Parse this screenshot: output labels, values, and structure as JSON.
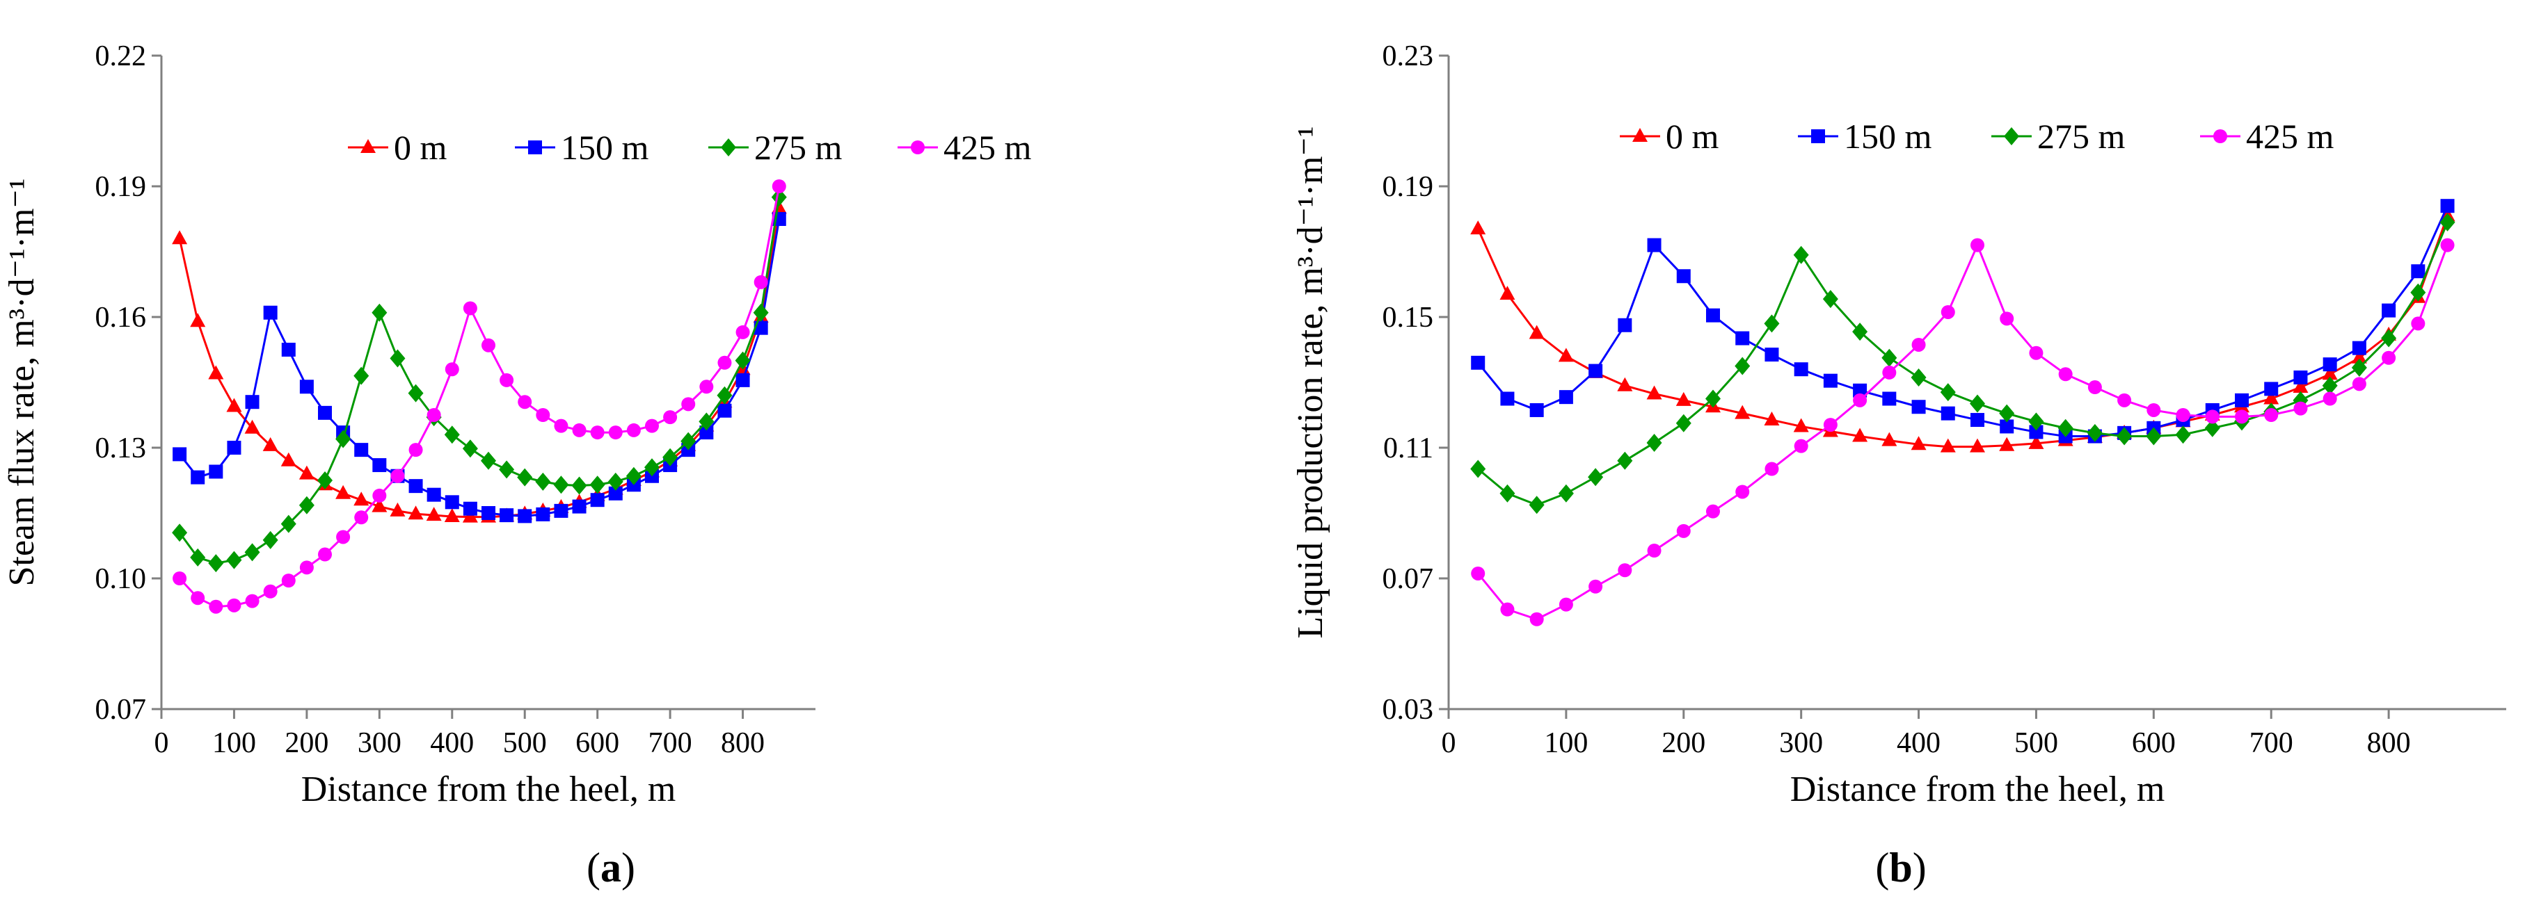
{
  "chart_data": [
    {
      "type": "line",
      "panel_label": "a",
      "title": "",
      "xlabel": "Distance from the heel, m",
      "ylabel": "Steam flux rate, m³·d⁻¹·m⁻¹",
      "xlim": [
        0,
        900
      ],
      "ylim": [
        0.07,
        0.22
      ],
      "xticks": [
        "0",
        "100",
        "200",
        "300",
        "400",
        "500",
        "600",
        "700",
        "800"
      ],
      "yticks": [
        "0.07",
        "0.10",
        "0.13",
        "0.16",
        "0.19",
        "0.22"
      ],
      "grid": false,
      "legend_position": "top",
      "x": [
        25,
        50,
        75,
        100,
        125,
        150,
        175,
        200,
        225,
        250,
        275,
        300,
        325,
        350,
        375,
        400,
        425,
        450,
        475,
        500,
        525,
        550,
        575,
        600,
        625,
        650,
        675,
        700,
        725,
        750,
        775,
        800,
        825,
        850
      ],
      "series": [
        {
          "name": "0 m",
          "color": "#ff0000",
          "marker": "triangle",
          "values": [
            0.178,
            0.159,
            0.147,
            0.1395,
            0.1345,
            0.1305,
            0.127,
            0.124,
            0.1215,
            0.1195,
            0.118,
            0.1165,
            0.1155,
            0.1148,
            0.1145,
            0.1142,
            0.1141,
            0.1141,
            0.1143,
            0.1148,
            0.1155,
            0.1163,
            0.1175,
            0.119,
            0.1205,
            0.1225,
            0.1245,
            0.127,
            0.1305,
            0.135,
            0.1405,
            0.148,
            0.16,
            0.185
          ]
        },
        {
          "name": "150 m",
          "color": "#0000ff",
          "marker": "square",
          "values": [
            0.1285,
            0.1232,
            0.1245,
            0.13,
            0.1405,
            0.161,
            0.1525,
            0.144,
            0.138,
            0.1335,
            0.1295,
            0.126,
            0.1235,
            0.1212,
            0.1192,
            0.1175,
            0.116,
            0.115,
            0.1145,
            0.1143,
            0.1147,
            0.1155,
            0.1165,
            0.118,
            0.1195,
            0.1215,
            0.1235,
            0.126,
            0.1295,
            0.1335,
            0.1385,
            0.1455,
            0.1575,
            0.1825
          ]
        },
        {
          "name": "275 m",
          "color": "#009900",
          "marker": "diamond",
          "values": [
            0.1105,
            0.1048,
            0.1035,
            0.1042,
            0.106,
            0.1088,
            0.1125,
            0.1168,
            0.1225,
            0.132,
            0.1465,
            0.161,
            0.1505,
            0.1425,
            0.137,
            0.133,
            0.1298,
            0.127,
            0.125,
            0.1232,
            0.1222,
            0.1215,
            0.1213,
            0.1215,
            0.1222,
            0.1235,
            0.1255,
            0.1278,
            0.1315,
            0.136,
            0.142,
            0.15,
            0.161,
            0.1875
          ]
        },
        {
          "name": "425 m",
          "color": "#ff00ff",
          "marker": "circle",
          "values": [
            0.1,
            0.0955,
            0.0935,
            0.0938,
            0.0948,
            0.097,
            0.0995,
            0.1025,
            0.1055,
            0.1095,
            0.114,
            0.119,
            0.1235,
            0.1295,
            0.1375,
            0.148,
            0.162,
            0.1535,
            0.1455,
            0.1405,
            0.1375,
            0.135,
            0.134,
            0.1335,
            0.1335,
            0.134,
            0.135,
            0.137,
            0.14,
            0.144,
            0.1495,
            0.1565,
            0.168,
            0.19
          ]
        }
      ]
    },
    {
      "type": "line",
      "panel_label": "b",
      "title": "",
      "xlabel": "Distance from the heel, m",
      "ylabel": "Liquid production rate, m³·d⁻¹·m⁻¹",
      "xlim": [
        0,
        900
      ],
      "ylim": [
        0.03,
        0.23
      ],
      "xticks": [
        "0",
        "100",
        "200",
        "300",
        "400",
        "500",
        "600",
        "700",
        "800"
      ],
      "yticks": [
        "0.03",
        "0.07",
        "0.11",
        "0.15",
        "0.19",
        "0.23"
      ],
      "grid": false,
      "legend_position": "top",
      "x": [
        25,
        50,
        75,
        100,
        125,
        150,
        175,
        200,
        225,
        250,
        275,
        300,
        325,
        350,
        375,
        400,
        425,
        450,
        475,
        500,
        525,
        550,
        575,
        600,
        625,
        650,
        675,
        700,
        725,
        750,
        775,
        800,
        825,
        850
      ],
      "series": [
        {
          "name": "0 m",
          "color": "#ff0000",
          "marker": "triangle",
          "values": [
            0.177,
            0.157,
            0.145,
            0.138,
            0.133,
            0.129,
            0.1265,
            0.1245,
            0.1225,
            0.1205,
            0.1185,
            0.1165,
            0.115,
            0.1135,
            0.1122,
            0.111,
            0.1103,
            0.1103,
            0.1107,
            0.1113,
            0.1122,
            0.1132,
            0.1145,
            0.116,
            0.118,
            0.12,
            0.1225,
            0.125,
            0.1285,
            0.1325,
            0.1375,
            0.1445,
            0.156,
            0.181
          ]
        },
        {
          "name": "150 m",
          "color": "#0000ff",
          "marker": "square",
          "values": [
            0.136,
            0.125,
            0.1215,
            0.1255,
            0.1335,
            0.1475,
            0.172,
            0.1625,
            0.1505,
            0.1435,
            0.1385,
            0.134,
            0.1305,
            0.1275,
            0.125,
            0.1225,
            0.1205,
            0.1185,
            0.1165,
            0.1148,
            0.1135,
            0.1135,
            0.1145,
            0.116,
            0.1185,
            0.1215,
            0.1245,
            0.128,
            0.1315,
            0.1355,
            0.1405,
            0.152,
            0.164,
            0.184
          ]
        },
        {
          "name": "275 m",
          "color": "#009900",
          "marker": "diamond",
          "values": [
            0.1035,
            0.096,
            0.0925,
            0.096,
            0.101,
            0.106,
            0.1115,
            0.1175,
            0.125,
            0.135,
            0.148,
            0.169,
            0.1555,
            0.1455,
            0.1375,
            0.1315,
            0.127,
            0.1235,
            0.1205,
            0.118,
            0.116,
            0.1145,
            0.1135,
            0.1135,
            0.114,
            0.116,
            0.118,
            0.121,
            0.1245,
            0.129,
            0.1345,
            0.1435,
            0.1575,
            0.179
          ]
        },
        {
          "name": "425 m",
          "color": "#ff00ff",
          "marker": "circle",
          "values": [
            0.0715,
            0.0605,
            0.0575,
            0.062,
            0.0675,
            0.0725,
            0.0785,
            0.0845,
            0.0905,
            0.0965,
            0.1035,
            0.1105,
            0.117,
            0.1245,
            0.133,
            0.1415,
            0.1515,
            0.172,
            0.1495,
            0.139,
            0.1325,
            0.1285,
            0.1245,
            0.1215,
            0.12,
            0.1195,
            0.1195,
            0.12,
            0.122,
            0.125,
            0.1295,
            0.1375,
            0.148,
            0.172
          ]
        }
      ]
    }
  ]
}
